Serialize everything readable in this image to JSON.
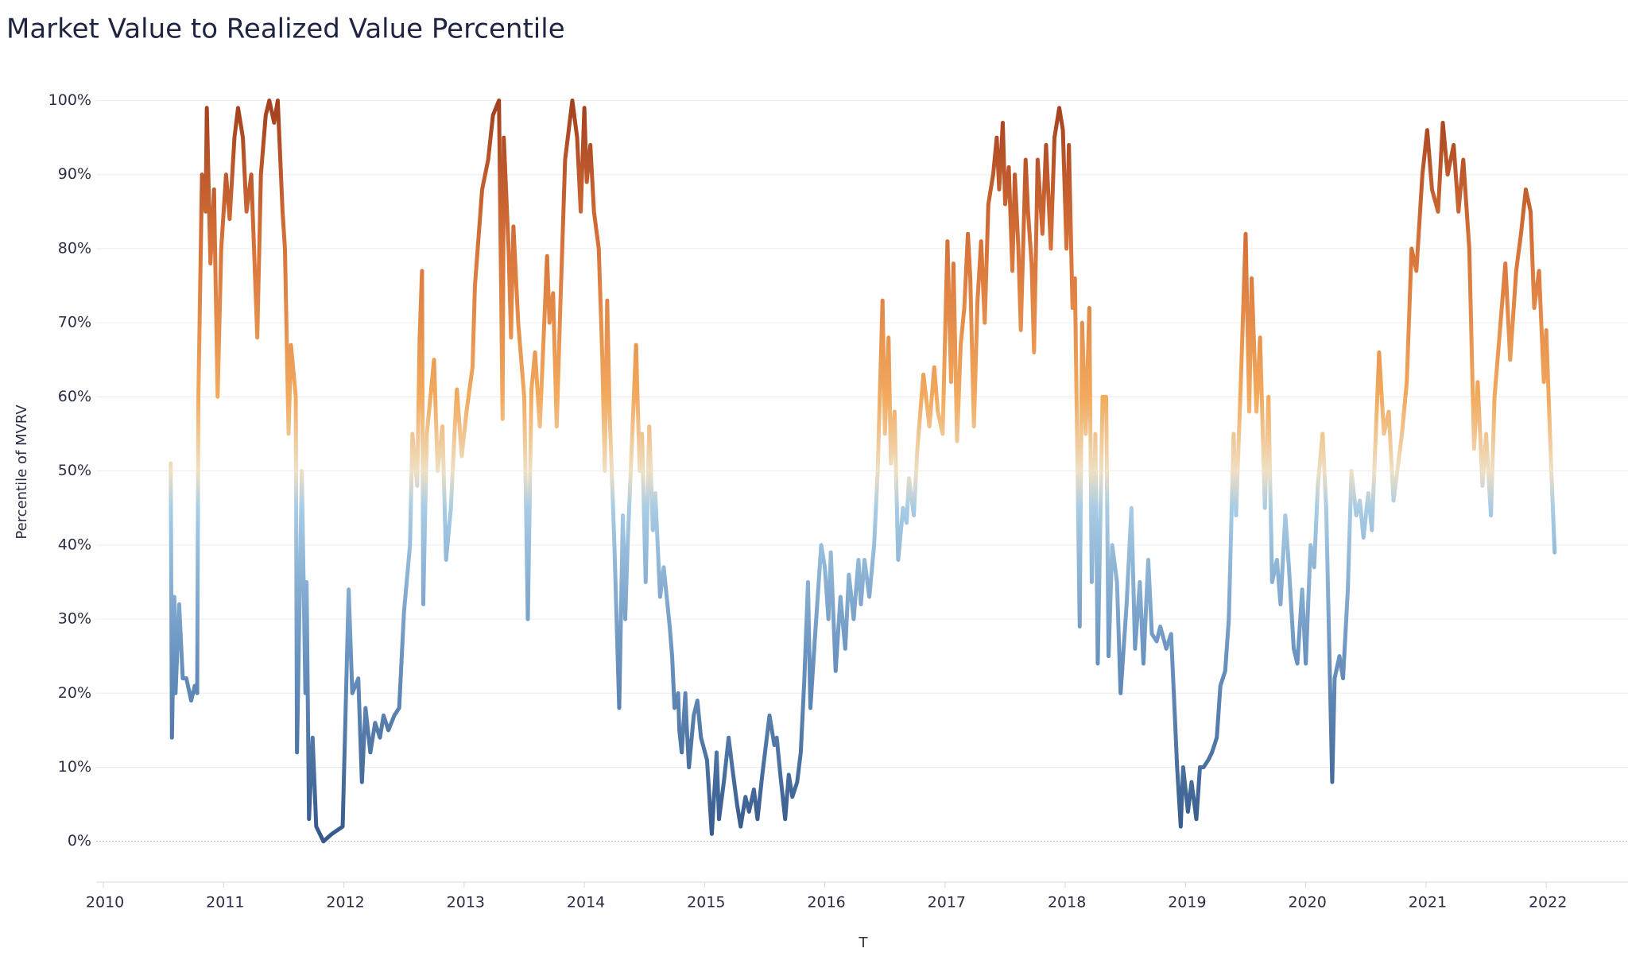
{
  "chart_data": {
    "type": "line",
    "title": "Market Value to Realized Value Percentile",
    "y_label": "Percentile of MVRV",
    "x_label": "T",
    "xlim": [
      2009.94,
      2022.68
    ],
    "xticks": [
      2010,
      2011,
      2012,
      2013,
      2014,
      2015,
      2016,
      2017,
      2018,
      2019,
      2020,
      2021,
      2022
    ],
    "ylim": [
      -5.5,
      105.2
    ],
    "yticks": [
      {
        "value": 0,
        "label": "0%"
      },
      {
        "value": 10,
        "label": "10%"
      },
      {
        "value": 20,
        "label": "20%"
      },
      {
        "value": 30,
        "label": "30%"
      },
      {
        "value": 40,
        "label": "40%"
      },
      {
        "value": 50,
        "label": "50%"
      },
      {
        "value": 60,
        "label": "60%"
      },
      {
        "value": 70,
        "label": "70%"
      },
      {
        "value": 80,
        "label": "80%"
      },
      {
        "value": 90,
        "label": "90%"
      },
      {
        "value": 100,
        "label": "100%"
      }
    ],
    "grid": true,
    "color_scale": [
      {
        "value": 0,
        "color": "#34588a"
      },
      {
        "value": 25,
        "color": "#6a93c0"
      },
      {
        "value": 45,
        "color": "#a8cce5"
      },
      {
        "value": 50,
        "color": "#efdfc3"
      },
      {
        "value": 60,
        "color": "#f2aa5e"
      },
      {
        "value": 80,
        "color": "#d8733a"
      },
      {
        "value": 100,
        "color": "#a3401e"
      }
    ],
    "x": [
      2010.56,
      2010.57,
      2010.59,
      2010.6,
      2010.63,
      2010.66,
      2010.69,
      2010.73,
      2010.76,
      2010.78,
      2010.79,
      2010.82,
      2010.85,
      2010.86,
      2010.89,
      2010.92,
      2010.95,
      2010.98,
      2011.02,
      2011.05,
      2011.09,
      2011.12,
      2011.16,
      2011.19,
      2011.23,
      2011.28,
      2011.31,
      2011.35,
      2011.38,
      2011.42,
      2011.45,
      2011.49,
      2011.51,
      2011.54,
      2011.56,
      2011.6,
      2011.61,
      2011.65,
      2011.68,
      2011.69,
      2011.71,
      2011.74,
      2011.77,
      2011.8,
      2011.83,
      2011.9,
      2011.99,
      2012.04,
      2012.07,
      2012.12,
      2012.15,
      2012.18,
      2012.22,
      2012.26,
      2012.3,
      2012.33,
      2012.37,
      2012.42,
      2012.46,
      2012.5,
      2012.55,
      2012.57,
      2012.61,
      2012.63,
      2012.65,
      2012.66,
      2012.69,
      2012.75,
      2012.78,
      2012.82,
      2012.85,
      2012.89,
      2012.92,
      2012.94,
      2012.98,
      2013.02,
      2013.07,
      2013.09,
      2013.15,
      2013.2,
      2013.24,
      2013.29,
      2013.32,
      2013.33,
      2013.37,
      2013.39,
      2013.41,
      2013.45,
      2013.5,
      2013.53,
      2013.56,
      2013.59,
      2013.63,
      2013.69,
      2013.71,
      2013.74,
      2013.77,
      2013.8,
      2013.84,
      2013.9,
      2013.94,
      2013.97,
      2014.0,
      2014.02,
      2014.05,
      2014.08,
      2014.12,
      2014.15,
      2014.17,
      2014.19,
      2014.21,
      2014.25,
      2014.29,
      2014.32,
      2014.34,
      2014.36,
      2014.43,
      2014.46,
      2014.48,
      2014.51,
      2014.54,
      2014.57,
      2014.59,
      2014.63,
      2014.66,
      2014.71,
      2014.73,
      2014.75,
      2014.78,
      2014.79,
      2014.81,
      2014.84,
      2014.85,
      2014.87,
      2014.91,
      2014.94,
      2014.97,
      2015.02,
      2015.06,
      2015.09,
      2015.1,
      2015.12,
      2015.16,
      2015.2,
      2015.23,
      2015.27,
      2015.3,
      2015.34,
      2015.37,
      2015.41,
      2015.44,
      2015.48,
      2015.51,
      2015.54,
      2015.58,
      2015.6,
      2015.63,
      2015.67,
      2015.7,
      2015.73,
      2015.77,
      2015.8,
      2015.83,
      2015.86,
      2015.88,
      2015.92,
      2015.97,
      2016.0,
      2016.03,
      2016.05,
      2016.09,
      2016.13,
      2016.17,
      2016.2,
      2016.24,
      2016.28,
      2016.3,
      2016.33,
      2016.37,
      2016.41,
      2016.44,
      2016.48,
      2016.5,
      2016.53,
      2016.55,
      2016.58,
      2016.61,
      2016.65,
      2016.68,
      2016.7,
      2016.74,
      2016.77,
      2016.82,
      2016.87,
      2016.91,
      2016.94,
      2016.98,
      2017.0,
      2017.02,
      2017.05,
      2017.07,
      2017.1,
      2017.13,
      2017.16,
      2017.19,
      2017.21,
      2017.24,
      2017.27,
      2017.3,
      2017.33,
      2017.36,
      2017.4,
      2017.43,
      2017.45,
      2017.48,
      2017.5,
      2017.53,
      2017.56,
      2017.58,
      2017.61,
      2017.63,
      2017.67,
      2017.69,
      2017.72,
      2017.74,
      2017.77,
      2017.81,
      2017.84,
      2017.88,
      2017.91,
      2017.95,
      2017.98,
      2018.01,
      2018.03,
      2018.06,
      2018.08,
      2018.12,
      2018.14,
      2018.17,
      2018.2,
      2018.22,
      2018.25,
      2018.27,
      2018.31,
      2018.34,
      2018.36,
      2018.39,
      2018.43,
      2018.46,
      2018.51,
      2018.55,
      2018.58,
      2018.62,
      2018.65,
      2018.69,
      2018.72,
      2018.76,
      2018.79,
      2018.84,
      2018.88,
      2018.9,
      2018.93,
      2018.96,
      2018.98,
      2019.02,
      2019.05,
      2019.09,
      2019.12,
      2019.15,
      2019.19,
      2019.22,
      2019.26,
      2019.29,
      2019.33,
      2019.36,
      2019.4,
      2019.42,
      2019.46,
      2019.5,
      2019.53,
      2019.55,
      2019.59,
      2019.62,
      2019.66,
      2019.69,
      2019.72,
      2019.76,
      2019.79,
      2019.83,
      2019.86,
      2019.9,
      2019.93,
      2019.97,
      2020.0,
      2020.04,
      2020.07,
      2020.1,
      2020.14,
      2020.17,
      2020.22,
      2020.24,
      2020.28,
      2020.31,
      2020.35,
      2020.38,
      2020.42,
      2020.45,
      2020.48,
      2020.52,
      2020.55,
      2020.61,
      2020.65,
      2020.69,
      2020.73,
      2020.8,
      2020.84,
      2020.88,
      2020.92,
      2020.97,
      2021.01,
      2021.05,
      2021.1,
      2021.14,
      2021.18,
      2021.23,
      2021.27,
      2021.31,
      2021.36,
      2021.4,
      2021.43,
      2021.47,
      2021.5,
      2021.54,
      2021.57,
      2021.62,
      2021.66,
      2021.7,
      2021.75,
      2021.79,
      2021.83,
      2021.87,
      2021.9,
      2021.94,
      2021.98,
      2022.0,
      2022.04,
      2022.07
    ],
    "values": [
      51,
      14,
      33,
      20,
      32,
      22,
      22,
      19,
      21,
      20,
      60,
      90,
      85,
      99,
      78,
      88,
      60,
      80,
      90,
      84,
      95,
      99,
      95,
      85,
      90,
      68,
      90,
      98,
      100,
      97,
      100,
      85,
      80,
      55,
      67,
      60,
      12,
      50,
      20,
      35,
      3,
      14,
      2,
      1,
      0,
      1,
      2,
      34,
      20,
      22,
      8,
      18,
      12,
      16,
      14,
      17,
      15,
      17,
      18,
      31,
      40,
      55,
      48,
      68,
      77,
      32,
      55,
      65,
      50,
      56,
      38,
      45,
      55,
      61,
      52,
      58,
      64,
      75,
      88,
      92,
      98,
      100,
      57,
      95,
      80,
      68,
      83,
      70,
      60,
      30,
      61,
      66,
      56,
      79,
      70,
      74,
      56,
      72,
      92,
      100,
      95,
      85,
      99,
      89,
      94,
      85,
      80,
      65,
      50,
      73,
      58,
      40,
      18,
      44,
      30,
      40,
      67,
      50,
      55,
      35,
      56,
      42,
      47,
      33,
      37,
      29,
      25,
      18,
      20,
      15,
      12,
      20,
      16,
      10,
      17,
      19,
      14,
      11,
      1,
      9,
      12,
      3,
      8,
      14,
      10,
      5,
      2,
      6,
      4,
      7,
      3,
      9,
      13,
      17,
      13,
      14,
      9,
      3,
      9,
      6,
      8,
      12,
      22,
      35,
      18,
      28,
      40,
      37,
      30,
      39,
      23,
      33,
      26,
      36,
      30,
      38,
      32,
      38,
      33,
      40,
      50,
      73,
      55,
      68,
      51,
      58,
      38,
      45,
      43,
      49,
      44,
      53,
      63,
      56,
      64,
      58,
      55,
      68,
      81,
      62,
      78,
      54,
      67,
      72,
      82,
      76,
      56,
      73,
      81,
      70,
      86,
      90,
      95,
      88,
      97,
      86,
      91,
      77,
      90,
      80,
      69,
      92,
      85,
      78,
      66,
      92,
      82,
      94,
      80,
      95,
      99,
      96,
      80,
      94,
      72,
      76,
      29,
      70,
      55,
      72,
      35,
      55,
      24,
      60,
      60,
      25,
      40,
      35,
      20,
      32,
      45,
      26,
      35,
      24,
      38,
      28,
      27,
      29,
      26,
      28,
      21,
      10,
      2,
      10,
      4,
      8,
      3,
      10,
      10,
      11,
      12,
      14,
      21,
      23,
      30,
      55,
      44,
      62,
      82,
      58,
      76,
      58,
      68,
      45,
      60,
      35,
      38,
      32,
      44,
      37,
      26,
      24,
      34,
      24,
      40,
      37,
      48,
      55,
      45,
      8,
      22,
      25,
      22,
      34,
      50,
      44,
      46,
      41,
      47,
      42,
      66,
      55,
      58,
      46,
      55,
      62,
      80,
      77,
      90,
      96,
      88,
      85,
      97,
      90,
      94,
      85,
      92,
      80,
      53,
      62,
      48,
      55,
      44,
      60,
      70,
      78,
      65,
      77,
      82,
      88,
      85,
      72,
      77,
      62,
      69,
      51,
      39
    ]
  }
}
